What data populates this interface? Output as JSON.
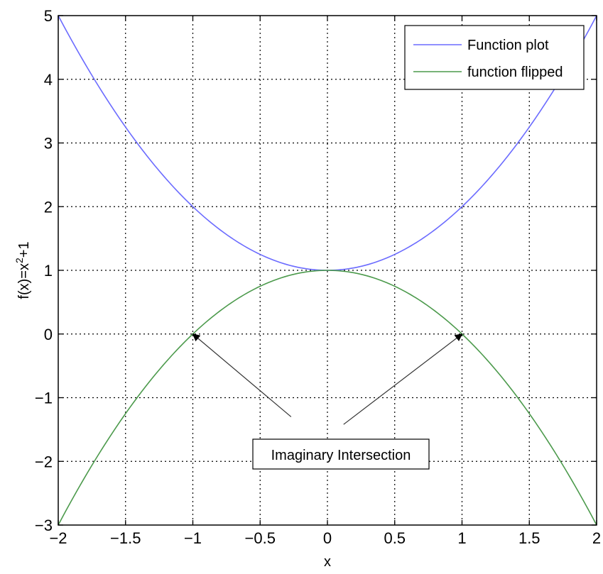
{
  "chart_data": {
    "type": "line",
    "xlabel": "x",
    "ylabel_base": "f(x)=x",
    "ylabel_sup": "2",
    "ylabel_rest": "+1",
    "xlim": [
      -2,
      2
    ],
    "ylim": [
      -3,
      5
    ],
    "grid": true,
    "grid_style": "dotted",
    "legend_position": "top-right",
    "xticks": [
      "−2",
      "−1.5",
      "−1",
      "−0.5",
      "0",
      "0.5",
      "1",
      "1.5",
      "2"
    ],
    "yticks": [
      "−3",
      "−2",
      "−1",
      "0",
      "1",
      "2",
      "3",
      "4",
      "5"
    ],
    "series": [
      {
        "name": "Function plot",
        "color": "#6b6bff",
        "formula": "x^2+1",
        "x": [
          -2,
          -1.75,
          -1.5,
          -1.25,
          -1,
          -0.75,
          -0.5,
          -0.25,
          0,
          0.25,
          0.5,
          0.75,
          1,
          1.25,
          1.5,
          1.75,
          2
        ],
        "y": [
          5,
          4.0625,
          3.25,
          2.5625,
          2,
          1.5625,
          1.25,
          1.0625,
          1,
          1.0625,
          1.25,
          1.5625,
          2,
          2.5625,
          3.25,
          4.0625,
          5
        ]
      },
      {
        "name": "function flipped",
        "color": "#4c9a4c",
        "formula": "1-x^2",
        "x": [
          -2,
          -1.75,
          -1.5,
          -1.25,
          -1,
          -0.75,
          -0.5,
          -0.25,
          0,
          0.25,
          0.5,
          0.75,
          1,
          1.25,
          1.5,
          1.75,
          2
        ],
        "y": [
          -3,
          -2.0625,
          -1.25,
          -0.5625,
          0,
          0.4375,
          0.75,
          0.9375,
          1,
          0.9375,
          0.75,
          0.4375,
          0,
          -0.5625,
          -1.25,
          -2.0625,
          -3
        ]
      }
    ],
    "annotation": {
      "text": "Imaginary Intersection",
      "arrow_targets": [
        [
          -1,
          0
        ],
        [
          1,
          0
        ]
      ],
      "arrow_tails": [
        [
          -0.27,
          -1.3
        ],
        [
          0.12,
          -1.42
        ]
      ]
    }
  }
}
